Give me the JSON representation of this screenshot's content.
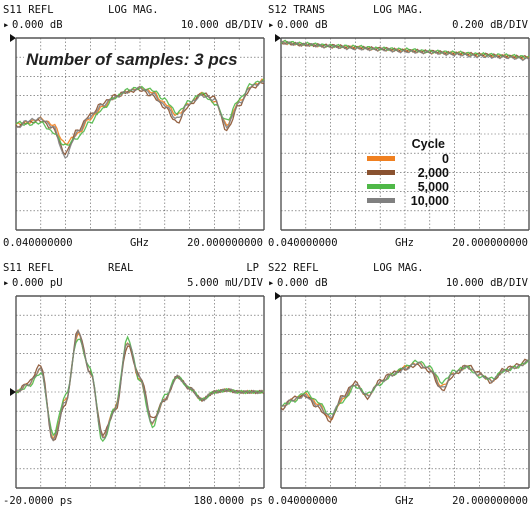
{
  "chart_data": [
    {
      "type": "line",
      "header": {
        "param": "S11 REFL",
        "format": "LOG MAG.",
        "mode": "",
        "ref": "0.000 dB",
        "scale": "10.000 dB/DIV"
      },
      "footer": {
        "start": "0.040000000",
        "unit": "GHz",
        "stop": "20.000000000"
      },
      "x_range_ghz": [
        0.04,
        20.0
      ],
      "y_divisions": 10,
      "ref_division": 0,
      "annotation": "Number of samples: 3 pcs",
      "x": [
        0.04,
        1,
        2,
        3,
        4,
        5,
        6,
        7,
        8,
        9,
        10,
        11,
        12,
        13,
        14,
        15,
        16,
        17,
        18,
        19,
        20
      ],
      "series": [
        {
          "values": [
            -45,
            -44,
            -42,
            -45,
            -55,
            -50,
            -42,
            -36,
            -31,
            -28,
            -26,
            -28,
            -34,
            -40,
            -34,
            -29,
            -33,
            -45,
            -33,
            -25,
            -22
          ]
        },
        {
          "values": [
            -46,
            -44,
            -43,
            -47,
            -60,
            -48,
            -40,
            -34,
            -30,
            -28,
            -27,
            -30,
            -36,
            -44,
            -35,
            -29,
            -31,
            -48,
            -35,
            -26,
            -23
          ]
        },
        {
          "values": [
            -44,
            -45,
            -44,
            -49,
            -56,
            -52,
            -44,
            -37,
            -31,
            -27,
            -26,
            -27,
            -32,
            -39,
            -33,
            -29,
            -34,
            -43,
            -32,
            -24,
            -22
          ]
        },
        {
          "values": [
            -47,
            -43,
            -42,
            -46,
            -62,
            -49,
            -41,
            -35,
            -31,
            -28,
            -26,
            -29,
            -35,
            -42,
            -34,
            -30,
            -32,
            -46,
            -34,
            -25,
            -23
          ]
        }
      ]
    },
    {
      "type": "line",
      "header": {
        "param": "S12 TRANS",
        "format": "LOG MAG.",
        "mode": "",
        "ref": "0.000 dB",
        "scale": "0.200 dB/DIV"
      },
      "footer": {
        "start": "0.040000000",
        "unit": "GHz",
        "stop": "20.000000000"
      },
      "x_range_ghz": [
        0.04,
        20.0
      ],
      "y_divisions": 10,
      "ref_division": 0,
      "legend": {
        "title": "Cycle",
        "entries": [
          {
            "label": "0",
            "color": "#f08020"
          },
          {
            "label": "2,000",
            "color": "#8a5230"
          },
          {
            "label": "5,000",
            "color": "#4fb848"
          },
          {
            "label": "10,000",
            "color": "#808080"
          }
        ]
      },
      "x": [
        0.04,
        2,
        4,
        6,
        8,
        10,
        12,
        14,
        16,
        18,
        20
      ],
      "series": [
        {
          "values": [
            -0.05,
            -0.07,
            -0.09,
            -0.1,
            -0.12,
            -0.13,
            -0.15,
            -0.16,
            -0.18,
            -0.19,
            -0.21
          ]
        },
        {
          "values": [
            -0.05,
            -0.07,
            -0.08,
            -0.1,
            -0.11,
            -0.13,
            -0.14,
            -0.16,
            -0.17,
            -0.19,
            -0.2
          ]
        },
        {
          "values": [
            -0.04,
            -0.06,
            -0.08,
            -0.09,
            -0.11,
            -0.12,
            -0.14,
            -0.15,
            -0.17,
            -0.18,
            -0.2
          ]
        },
        {
          "values": [
            -0.05,
            -0.07,
            -0.09,
            -0.11,
            -0.12,
            -0.14,
            -0.15,
            -0.17,
            -0.19,
            -0.2,
            -0.22
          ]
        }
      ]
    },
    {
      "type": "line",
      "header": {
        "param": "S11 REFL",
        "format": "REAL",
        "mode": "LP",
        "ref": "0.000 pU",
        "scale": "5.000 mU/DIV"
      },
      "footer": {
        "start": "-20.0000 ps",
        "unit": "",
        "stop": "180.0000 ps"
      },
      "x_range_ps": [
        -20,
        180
      ],
      "y_divisions": 10,
      "ref_division": 5,
      "x": [
        -20,
        -10,
        0,
        10,
        20,
        30,
        40,
        50,
        60,
        70,
        80,
        90,
        100,
        110,
        120,
        130,
        140,
        150,
        160,
        170,
        180
      ],
      "series": [
        {
          "values": [
            0,
            2,
            6,
            -12,
            -2,
            15,
            5,
            -12,
            -4,
            13,
            3,
            -8,
            -2,
            4,
            1,
            -2,
            0,
            0.5,
            0,
            0,
            0
          ]
        },
        {
          "values": [
            0,
            2.5,
            7,
            -13,
            -3,
            16,
            5,
            -11,
            -5,
            12,
            4,
            -7,
            -2,
            4,
            1,
            -2,
            0,
            0.5,
            0,
            0,
            0
          ]
        },
        {
          "values": [
            0,
            1.5,
            5,
            -11,
            -1,
            14,
            6,
            -13,
            -4,
            14,
            3,
            -9,
            -1,
            4,
            1,
            -2,
            0,
            0.5,
            0,
            0,
            0
          ]
        },
        {
          "values": [
            0,
            2,
            6,
            -12.5,
            -2.5,
            15.5,
            5,
            -12,
            -4.5,
            13,
            3.5,
            -8,
            -2,
            4,
            1,
            -2,
            0,
            0.5,
            0,
            0,
            0
          ]
        }
      ]
    },
    {
      "type": "line",
      "header": {
        "param": "S22 REFL",
        "format": "LOG MAG.",
        "mode": "",
        "ref": "0.000 dB",
        "scale": "10.000 dB/DIV"
      },
      "footer": {
        "start": "0.040000000",
        "unit": "GHz",
        "stop": "20.000000000"
      },
      "x_range_ghz": [
        0.04,
        20.0
      ],
      "y_divisions": 10,
      "ref_division": 0,
      "x": [
        0.04,
        1,
        2,
        3,
        4,
        5,
        6,
        7,
        8,
        9,
        10,
        11,
        12,
        13,
        14,
        15,
        16,
        17,
        18,
        19,
        20
      ],
      "series": [
        {
          "values": [
            -58,
            -54,
            -51,
            -56,
            -64,
            -54,
            -46,
            -52,
            -45,
            -41,
            -37,
            -35,
            -38,
            -47,
            -40,
            -37,
            -41,
            -44,
            -39,
            -37,
            -34
          ]
        },
        {
          "values": [
            -59,
            -53,
            -52,
            -58,
            -65,
            -52,
            -45,
            -53,
            -44,
            -40,
            -38,
            -36,
            -39,
            -49,
            -41,
            -36,
            -40,
            -45,
            -38,
            -36,
            -33
          ]
        },
        {
          "values": [
            -57,
            -55,
            -50,
            -55,
            -62,
            -55,
            -47,
            -51,
            -46,
            -41,
            -37,
            -34,
            -37,
            -45,
            -39,
            -37,
            -42,
            -43,
            -39,
            -37,
            -34
          ]
        },
        {
          "values": [
            -58,
            -54,
            -52,
            -57,
            -63,
            -53,
            -46,
            -52,
            -45,
            -41,
            -38,
            -35,
            -38,
            -48,
            -40,
            -37,
            -41,
            -44,
            -39,
            -37,
            -34
          ]
        }
      ]
    }
  ]
}
